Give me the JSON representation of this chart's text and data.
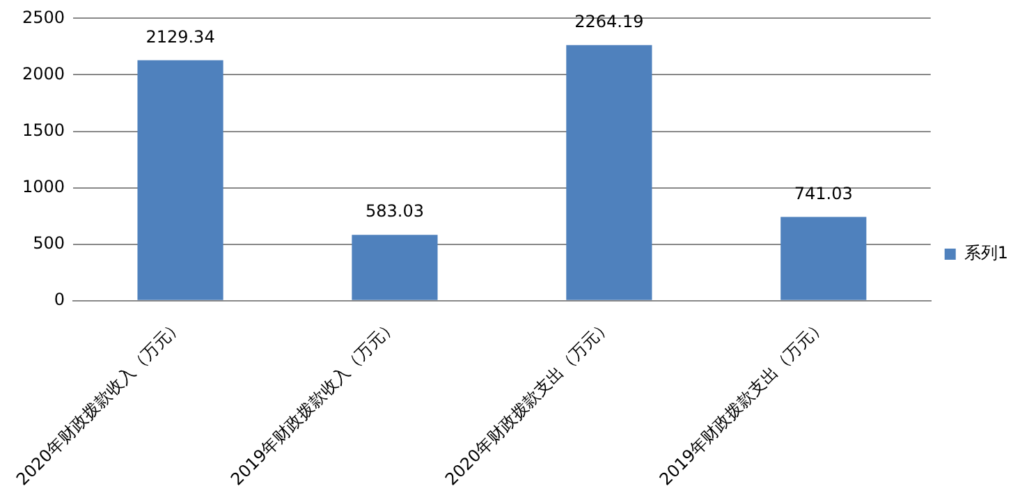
{
  "chart_data": {
    "type": "bar",
    "categories": [
      "2020年财政拨款收入（万元）",
      "2019年财政拨款收入（万元）",
      "2020年财政拨款支出（万元）",
      "2019年财政拨款支出（万元）"
    ],
    "series": [
      {
        "name": "系列1",
        "color": "#4f81bd",
        "values": [
          2129.34,
          583.03,
          2264.19,
          741.03
        ]
      }
    ],
    "ylim": [
      0,
      2500
    ],
    "yticks": [
      0,
      500,
      1000,
      1500,
      2000,
      2500
    ],
    "grid": "y",
    "legend": "right",
    "data_labels": true
  }
}
